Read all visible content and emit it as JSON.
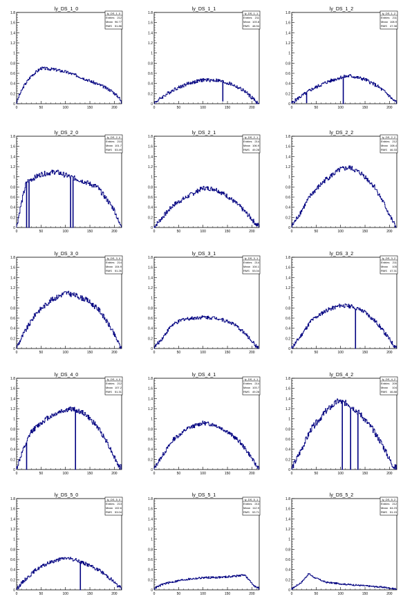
{
  "chart_data": [
    {
      "type": "histogram",
      "title": "ly_DS_1_0",
      "stats": {
        "name": "ly_DS_1_0",
        "entries": "212",
        "mean": "96.77",
        "rms": "51.86"
      },
      "ylim": [
        0,
        1.8
      ],
      "xlim": [
        0,
        215
      ],
      "yticks": [
        0,
        0.2,
        0.4,
        0.6,
        0.8,
        1,
        1.2,
        1.4,
        1.6,
        1.8
      ],
      "xticks": [
        0,
        50,
        100,
        150,
        200
      ],
      "profile": [
        [
          0,
          0.02
        ],
        [
          5,
          0.15
        ],
        [
          15,
          0.35
        ],
        [
          30,
          0.55
        ],
        [
          50,
          0.7
        ],
        [
          75,
          0.68
        ],
        [
          100,
          0.63
        ],
        [
          125,
          0.55
        ],
        [
          150,
          0.45
        ],
        [
          175,
          0.35
        ],
        [
          195,
          0.25
        ],
        [
          210,
          0.12
        ],
        [
          213,
          0.05
        ]
      ],
      "noise": 0.03,
      "spikes": []
    },
    {
      "type": "histogram",
      "title": "ly_DS_1_1",
      "stats": {
        "name": "ly_DS_1_1",
        "entries": "211",
        "mean": "103.8",
        "rms": "48.94"
      },
      "ylim": [
        0,
        1.8
      ],
      "xlim": [
        0,
        215
      ],
      "yticks": [
        0,
        0.2,
        0.4,
        0.6,
        0.8,
        1,
        1.2,
        1.4,
        1.6,
        1.8
      ],
      "xticks": [
        0,
        50,
        100,
        150,
        200
      ],
      "profile": [
        [
          0,
          0.01
        ],
        [
          15,
          0.12
        ],
        [
          40,
          0.28
        ],
        [
          70,
          0.4
        ],
        [
          100,
          0.47
        ],
        [
          130,
          0.46
        ],
        [
          160,
          0.38
        ],
        [
          185,
          0.25
        ],
        [
          200,
          0.12
        ],
        [
          210,
          0.03
        ]
      ],
      "noise": 0.035,
      "spikes": [
        [
          140,
          0.05
        ]
      ]
    },
    {
      "type": "histogram",
      "title": "ly_DS_1_2",
      "stats": {
        "name": "ly_DS_1_2",
        "entries": "211",
        "mean": "108.9",
        "rms": "47.38"
      },
      "ylim": [
        0,
        1.8
      ],
      "xlim": [
        0,
        215
      ],
      "yticks": [
        0,
        0.2,
        0.4,
        0.6,
        0.8,
        1,
        1.2,
        1.4,
        1.6,
        1.8
      ],
      "xticks": [
        0,
        50,
        100,
        150,
        200
      ],
      "profile": [
        [
          0,
          0.01
        ],
        [
          15,
          0.12
        ],
        [
          40,
          0.28
        ],
        [
          70,
          0.42
        ],
        [
          100,
          0.52
        ],
        [
          120,
          0.55
        ],
        [
          150,
          0.48
        ],
        [
          175,
          0.35
        ],
        [
          195,
          0.2
        ],
        [
          210,
          0.05
        ]
      ],
      "noise": 0.035,
      "spikes": [
        [
          30,
          0.02
        ],
        [
          105,
          0.0
        ]
      ]
    },
    {
      "type": "histogram",
      "title": "ly_DS_2_0",
      "stats": {
        "name": "ly_DS_2_0",
        "entries": "210",
        "mean": "101.7",
        "rms": "53.49"
      },
      "ylim": [
        0,
        1.8
      ],
      "xlim": [
        0,
        215
      ],
      "yticks": [
        0,
        0.2,
        0.4,
        0.6,
        0.8,
        1,
        1.2,
        1.4,
        1.6,
        1.8
      ],
      "xticks": [
        0,
        50,
        100,
        150,
        200
      ],
      "profile": [
        [
          0,
          0.02
        ],
        [
          8,
          0.4
        ],
        [
          20,
          0.9
        ],
        [
          50,
          1.05
        ],
        [
          80,
          1.1
        ],
        [
          110,
          1.0
        ],
        [
          140,
          0.9
        ],
        [
          165,
          0.8
        ],
        [
          185,
          0.55
        ],
        [
          200,
          0.35
        ],
        [
          210,
          0.08
        ]
      ],
      "noise": 0.05,
      "spikes": [
        [
          20,
          0.0
        ],
        [
          25,
          0.0
        ],
        [
          110,
          0.0
        ],
        [
          115,
          0.0
        ]
      ]
    },
    {
      "type": "histogram",
      "title": "ly_DS_2_1",
      "stats": {
        "name": "ly_DS_2_1",
        "entries": "214",
        "mean": "106.9",
        "rms": "49.28"
      },
      "ylim": [
        0,
        1.8
      ],
      "xlim": [
        0,
        215
      ],
      "yticks": [
        0,
        0.2,
        0.4,
        0.6,
        0.8,
        1,
        1.2,
        1.4,
        1.6,
        1.8
      ],
      "xticks": [
        0,
        50,
        100,
        150,
        200
      ],
      "profile": [
        [
          0,
          0.01
        ],
        [
          15,
          0.18
        ],
        [
          40,
          0.45
        ],
        [
          70,
          0.62
        ],
        [
          100,
          0.78
        ],
        [
          125,
          0.76
        ],
        [
          150,
          0.62
        ],
        [
          175,
          0.42
        ],
        [
          195,
          0.22
        ],
        [
          210,
          0.05
        ]
      ],
      "noise": 0.045,
      "spikes": []
    },
    {
      "type": "histogram",
      "title": "ly_DS_2_2",
      "stats": {
        "name": "ly_DS_2_2",
        "entries": "212",
        "mean": "108.4",
        "rms": "46.33"
      },
      "ylim": [
        0,
        1.8
      ],
      "xlim": [
        0,
        215
      ],
      "yticks": [
        0,
        0.2,
        0.4,
        0.6,
        0.8,
        1,
        1.2,
        1.4,
        1.6,
        1.8
      ],
      "xticks": [
        0,
        50,
        100,
        150,
        200
      ],
      "profile": [
        [
          0,
          0.02
        ],
        [
          15,
          0.25
        ],
        [
          40,
          0.65
        ],
        [
          70,
          0.95
        ],
        [
          100,
          1.15
        ],
        [
          120,
          1.18
        ],
        [
          145,
          1.05
        ],
        [
          170,
          0.8
        ],
        [
          190,
          0.45
        ],
        [
          205,
          0.15
        ],
        [
          212,
          0.03
        ]
      ],
      "noise": 0.05,
      "spikes": []
    },
    {
      "type": "histogram",
      "title": "ly_DS_3_0",
      "stats": {
        "name": "ly_DS_3_0",
        "entries": "214",
        "mean": "104.9",
        "rms": "51.26"
      },
      "ylim": [
        0,
        1.8
      ],
      "xlim": [
        0,
        215
      ],
      "yticks": [
        0,
        0.2,
        0.4,
        0.6,
        0.8,
        1,
        1.2,
        1.4,
        1.6,
        1.8
      ],
      "xticks": [
        0,
        50,
        100,
        150,
        200
      ],
      "profile": [
        [
          0,
          0.02
        ],
        [
          15,
          0.3
        ],
        [
          40,
          0.7
        ],
        [
          70,
          0.95
        ],
        [
          100,
          1.1
        ],
        [
          120,
          1.05
        ],
        [
          145,
          0.95
        ],
        [
          170,
          0.75
        ],
        [
          190,
          0.45
        ],
        [
          205,
          0.18
        ],
        [
          212,
          0.04
        ]
      ],
      "noise": 0.05,
      "spikes": []
    },
    {
      "type": "histogram",
      "title": "ly_DS_3_1",
      "stats": {
        "name": "ly_DS_3_1",
        "entries": "214",
        "mean": "104.1",
        "rms": "53.04"
      },
      "ylim": [
        0,
        1.8
      ],
      "xlim": [
        0,
        215
      ],
      "yticks": [
        0,
        0.2,
        0.4,
        0.6,
        0.8,
        1,
        1.2,
        1.4,
        1.6,
        1.8
      ],
      "xticks": [
        0,
        50,
        100,
        150,
        200
      ],
      "profile": [
        [
          0,
          0.02
        ],
        [
          15,
          0.18
        ],
        [
          35,
          0.45
        ],
        [
          60,
          0.58
        ],
        [
          100,
          0.62
        ],
        [
          130,
          0.6
        ],
        [
          160,
          0.5
        ],
        [
          180,
          0.35
        ],
        [
          200,
          0.15
        ],
        [
          210,
          0.03
        ]
      ],
      "noise": 0.035,
      "spikes": []
    },
    {
      "type": "histogram",
      "title": "ly_DS_3_2",
      "stats": {
        "name": "ly_DS_3_2",
        "entries": "211",
        "mean": "105",
        "rms": "47.31"
      },
      "ylim": [
        0,
        1.8
      ],
      "xlim": [
        0,
        215
      ],
      "yticks": [
        0,
        0.2,
        0.4,
        0.6,
        0.8,
        1,
        1.2,
        1.4,
        1.6,
        1.8
      ],
      "xticks": [
        0,
        50,
        100,
        150,
        200
      ],
      "profile": [
        [
          0,
          0.01
        ],
        [
          15,
          0.2
        ],
        [
          40,
          0.55
        ],
        [
          70,
          0.75
        ],
        [
          100,
          0.85
        ],
        [
          125,
          0.83
        ],
        [
          150,
          0.72
        ],
        [
          175,
          0.5
        ],
        [
          195,
          0.25
        ],
        [
          210,
          0.05
        ]
      ],
      "noise": 0.04,
      "spikes": [
        [
          130,
          0.0
        ]
      ]
    },
    {
      "type": "histogram",
      "title": "ly_DS_4_0",
      "stats": {
        "name": "ly_DS_4_0",
        "entries": "212",
        "mean": "107.2",
        "rms": "51.31"
      },
      "ylim": [
        0,
        1.8
      ],
      "xlim": [
        0,
        215
      ],
      "yticks": [
        0,
        0.2,
        0.4,
        0.6,
        0.8,
        1,
        1.2,
        1.4,
        1.6,
        1.8
      ],
      "xticks": [
        0,
        50,
        100,
        150,
        200
      ],
      "profile": [
        [
          0,
          0.02
        ],
        [
          10,
          0.3
        ],
        [
          30,
          0.75
        ],
        [
          60,
          1.0
        ],
        [
          90,
          1.15
        ],
        [
          115,
          1.2
        ],
        [
          140,
          1.1
        ],
        [
          165,
          0.85
        ],
        [
          185,
          0.55
        ],
        [
          200,
          0.25
        ],
        [
          210,
          0.05
        ]
      ],
      "noise": 0.05,
      "spikes": [
        [
          20,
          0.0
        ],
        [
          120,
          0.0
        ]
      ]
    },
    {
      "type": "histogram",
      "title": "ly_DS_4_1",
      "stats": {
        "name": "ly_DS_4_1",
        "entries": "214",
        "mean": "103.7",
        "rms": "49.28"
      },
      "ylim": [
        0,
        1.8
      ],
      "xlim": [
        0,
        215
      ],
      "yticks": [
        0,
        0.2,
        0.4,
        0.6,
        0.8,
        1,
        1.2,
        1.4,
        1.6,
        1.8
      ],
      "xticks": [
        0,
        50,
        100,
        150,
        200
      ],
      "profile": [
        [
          0,
          0.02
        ],
        [
          15,
          0.25
        ],
        [
          40,
          0.6
        ],
        [
          70,
          0.82
        ],
        [
          100,
          0.92
        ],
        [
          125,
          0.88
        ],
        [
          150,
          0.75
        ],
        [
          175,
          0.55
        ],
        [
          195,
          0.3
        ],
        [
          210,
          0.06
        ]
      ],
      "noise": 0.04,
      "spikes": []
    },
    {
      "type": "histogram",
      "title": "ly_DS_4_2",
      "stats": {
        "name": "ly_DS_4_2",
        "entries": "209",
        "mean": "104",
        "rms": "46.88"
      },
      "ylim": [
        0,
        1.8
      ],
      "xlim": [
        0,
        215
      ],
      "yticks": [
        0,
        0.2,
        0.4,
        0.6,
        0.8,
        1,
        1.2,
        1.4,
        1.6,
        1.8
      ],
      "xticks": [
        0,
        50,
        100,
        150,
        200
      ],
      "profile": [
        [
          0,
          0.02
        ],
        [
          15,
          0.3
        ],
        [
          40,
          0.8
        ],
        [
          70,
          1.15
        ],
        [
          95,
          1.35
        ],
        [
          115,
          1.3
        ],
        [
          140,
          1.1
        ],
        [
          165,
          0.8
        ],
        [
          185,
          0.5
        ],
        [
          200,
          0.2
        ],
        [
          210,
          0.04
        ]
      ],
      "noise": 0.06,
      "spikes": [
        [
          103,
          0.0
        ],
        [
          120,
          0.0
        ],
        [
          135,
          0.0
        ]
      ]
    },
    {
      "type": "histogram",
      "title": "ly_DS_5_0",
      "stats": {
        "name": "ly_DS_5_0",
        "entries": "213",
        "mean": "102.6",
        "rms": "53.04"
      },
      "ylim": [
        0,
        1.8
      ],
      "xlim": [
        0,
        215
      ],
      "yticks": [
        0,
        0.2,
        0.4,
        0.6,
        0.8,
        1,
        1.2,
        1.4,
        1.6,
        1.8
      ],
      "xticks": [
        0,
        50,
        100,
        150,
        200
      ],
      "profile": [
        [
          0,
          0.02
        ],
        [
          15,
          0.18
        ],
        [
          40,
          0.4
        ],
        [
          70,
          0.55
        ],
        [
          100,
          0.63
        ],
        [
          125,
          0.58
        ],
        [
          150,
          0.48
        ],
        [
          175,
          0.35
        ],
        [
          195,
          0.2
        ],
        [
          210,
          0.05
        ]
      ],
      "noise": 0.035,
      "spikes": [
        [
          130,
          0.0
        ]
      ]
    },
    {
      "type": "histogram",
      "title": "ly_DS_5_1",
      "stats": {
        "name": "ly_DS_5_1",
        "entries": "213",
        "mean": "112.9",
        "rms": "53.71"
      },
      "ylim": [
        0,
        1.8
      ],
      "xlim": [
        0,
        215
      ],
      "yticks": [
        0,
        0.2,
        0.4,
        0.6,
        0.8,
        1,
        1.2,
        1.4,
        1.6,
        1.8
      ],
      "xticks": [
        0,
        50,
        100,
        150,
        200
      ],
      "profile": [
        [
          0,
          0.03
        ],
        [
          20,
          0.12
        ],
        [
          60,
          0.2
        ],
        [
          100,
          0.24
        ],
        [
          140,
          0.25
        ],
        [
          175,
          0.28
        ],
        [
          185,
          0.3
        ],
        [
          195,
          0.18
        ],
        [
          210,
          0.04
        ]
      ],
      "noise": 0.02,
      "spikes": []
    },
    {
      "type": "histogram",
      "title": "ly_DS_5_2",
      "stats": {
        "name": "ly_DS_5_2",
        "entries": "212",
        "mean": "64.23",
        "rms": "51.15"
      },
      "ylim": [
        0,
        1.8
      ],
      "xlim": [
        0,
        215
      ],
      "yticks": [
        0,
        0.2,
        0.4,
        0.6,
        0.8,
        1,
        1.2,
        1.4,
        1.6,
        1.8
      ],
      "xticks": [
        0,
        50,
        100,
        150,
        200
      ],
      "profile": [
        [
          0,
          0.02
        ],
        [
          20,
          0.15
        ],
        [
          35,
          0.32
        ],
        [
          45,
          0.25
        ],
        [
          70,
          0.15
        ],
        [
          110,
          0.11
        ],
        [
          150,
          0.08
        ],
        [
          190,
          0.05
        ],
        [
          210,
          0.02
        ]
      ],
      "noise": 0.015,
      "spikes": []
    }
  ],
  "colors": {
    "histogram": "#000080",
    "axes": "#000000",
    "background": "#ffffff"
  },
  "labels": {
    "entries": "Entries",
    "mean": "Mean",
    "rms": "RMS"
  }
}
